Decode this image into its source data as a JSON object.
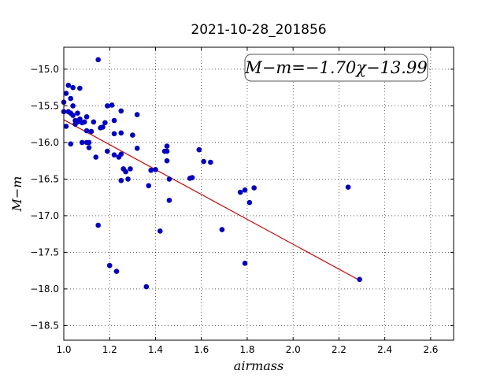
{
  "chart_data": {
    "type": "scatter",
    "title": "2021-10-28_201856",
    "xlabel": "airmass",
    "ylabel": "M−m",
    "xlim": [
      1.0,
      2.7
    ],
    "ylim": [
      -18.7,
      -14.7
    ],
    "y_inverted": true,
    "grid": true,
    "xticks": [
      1.0,
      1.2,
      1.4,
      1.6,
      1.8,
      2.0,
      2.2,
      2.4,
      2.6
    ],
    "xtick_labels": [
      "1.0",
      "1.2",
      "1.4",
      "1.6",
      "1.8",
      "2.0",
      "2.2",
      "2.4",
      "2.6"
    ],
    "yticks": [
      -15.0,
      -15.5,
      -16.0,
      -16.5,
      -17.0,
      -17.5,
      -18.0,
      -18.5
    ],
    "ytick_labels": [
      "−15.0",
      "−15.5",
      "−16.0",
      "−16.5",
      "−17.0",
      "−17.5",
      "−18.0",
      "−18.5"
    ],
    "annotation": "M−m=−1.70χ−13.99",
    "fit": {
      "slope": -1.7,
      "intercept": -13.99,
      "x_range": [
        1.0,
        2.29
      ],
      "color": "#d40000"
    },
    "marker_color": "#0000c8",
    "points": [
      [
        1.0,
        -15.45
      ],
      [
        1.0,
        -15.58
      ],
      [
        1.01,
        -15.33
      ],
      [
        1.01,
        -15.78
      ],
      [
        1.02,
        -15.22
      ],
      [
        1.02,
        -15.58
      ],
      [
        1.03,
        -15.4
      ],
      [
        1.03,
        -15.6
      ],
      [
        1.03,
        -16.02
      ],
      [
        1.04,
        -15.25
      ],
      [
        1.04,
        -15.5
      ],
      [
        1.04,
        -15.63
      ],
      [
        1.05,
        -15.7
      ],
      [
        1.05,
        -15.75
      ],
      [
        1.06,
        -15.6
      ],
      [
        1.06,
        -15.72
      ],
      [
        1.07,
        -15.26
      ],
      [
        1.07,
        -15.68
      ],
      [
        1.08,
        -15.73
      ],
      [
        1.08,
        -16.0
      ],
      [
        1.09,
        -15.72
      ],
      [
        1.1,
        -15.65
      ],
      [
        1.1,
        -15.84
      ],
      [
        1.1,
        -16.0
      ],
      [
        1.11,
        -16.0
      ],
      [
        1.11,
        -16.07
      ],
      [
        1.12,
        -15.85
      ],
      [
        1.13,
        -15.72
      ],
      [
        1.14,
        -16.2
      ],
      [
        1.15,
        -14.87
      ],
      [
        1.15,
        -17.13
      ],
      [
        1.16,
        -15.8
      ],
      [
        1.17,
        -15.79
      ],
      [
        1.18,
        -15.73
      ],
      [
        1.19,
        -15.5
      ],
      [
        1.19,
        -16.12
      ],
      [
        1.2,
        -17.68
      ],
      [
        1.21,
        -15.49
      ],
      [
        1.22,
        -15.7
      ],
      [
        1.22,
        -15.88
      ],
      [
        1.22,
        -16.17
      ],
      [
        1.23,
        -17.76
      ],
      [
        1.24,
        -16.2
      ],
      [
        1.25,
        -15.57
      ],
      [
        1.25,
        -15.87
      ],
      [
        1.25,
        -16.16
      ],
      [
        1.25,
        -16.52
      ],
      [
        1.26,
        -16.36
      ],
      [
        1.27,
        -16.4
      ],
      [
        1.28,
        -16.5
      ],
      [
        1.29,
        -16.36
      ],
      [
        1.3,
        -15.9
      ],
      [
        1.32,
        -15.62
      ],
      [
        1.32,
        -16.08
      ],
      [
        1.36,
        -17.97
      ],
      [
        1.37,
        -16.59
      ],
      [
        1.38,
        -16.38
      ],
      [
        1.4,
        -16.37
      ],
      [
        1.42,
        -17.21
      ],
      [
        1.44,
        -16.12
      ],
      [
        1.45,
        -16.05
      ],
      [
        1.45,
        -16.12
      ],
      [
        1.45,
        -16.25
      ],
      [
        1.46,
        -16.79
      ],
      [
        1.46,
        -16.5
      ],
      [
        1.55,
        -16.49
      ],
      [
        1.56,
        -16.48
      ],
      [
        1.59,
        -16.1
      ],
      [
        1.61,
        -16.26
      ],
      [
        1.64,
        -16.27
      ],
      [
        1.69,
        -17.19
      ],
      [
        1.77,
        -16.68
      ],
      [
        1.79,
        -16.65
      ],
      [
        1.79,
        -17.65
      ],
      [
        1.81,
        -16.82
      ],
      [
        1.83,
        -16.62
      ],
      [
        2.24,
        -16.61
      ],
      [
        2.29,
        -17.87
      ]
    ]
  }
}
